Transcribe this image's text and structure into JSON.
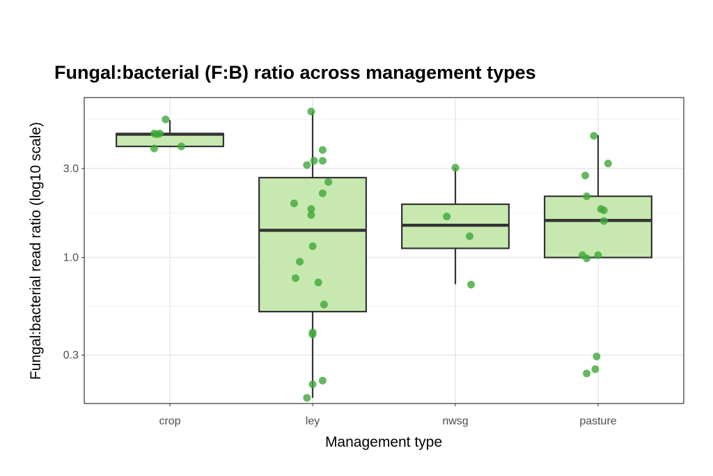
{
  "chart_data": {
    "type": "boxplot",
    "title": "Fungal:bacterial (F:B) ratio across management types",
    "xlabel": "Management type",
    "ylabel": "Fungal:bacterial read ratio (log10 scale)",
    "y_scale": "log10",
    "ylim": [
      0.165,
      7.2
    ],
    "y_ticks": [
      0.3,
      1.0,
      3.0
    ],
    "y_tick_labels": [
      "0.3",
      "1.0",
      "3.0"
    ],
    "grid": true,
    "categories": [
      "crop",
      "ley",
      "nwsg",
      "pasture"
    ],
    "colors": {
      "box_fill": "#c7e9b0",
      "box_line": "#333333",
      "point": "#3fa83a"
    },
    "boxes": [
      {
        "category": "crop",
        "lower": 3.94,
        "q1": 3.94,
        "median": 4.58,
        "q3": 4.61,
        "upper": 5.45
      },
      {
        "category": "ley",
        "lower": 0.177,
        "q1": 0.513,
        "median": 1.4,
        "q3": 2.68,
        "upper": 6.06
      },
      {
        "category": "nwsg",
        "lower": 0.72,
        "q1": 1.12,
        "median": 1.49,
        "q3": 1.93,
        "upper": 3.03
      },
      {
        "category": "pasture",
        "lower": 1.0,
        "q1": 1.0,
        "median": 1.58,
        "q3": 2.13,
        "upper": 4.53
      }
    ],
    "points": [
      {
        "category": "crop",
        "x": 0.97,
        "y": 5.5
      },
      {
        "category": "crop",
        "x": 0.89,
        "y": 4.62
      },
      {
        "category": "crop",
        "x": 0.91,
        "y": 4.58
      },
      {
        "category": "crop",
        "x": 0.93,
        "y": 4.62
      },
      {
        "category": "crop",
        "x": 0.89,
        "y": 3.84
      },
      {
        "category": "crop",
        "x": 1.08,
        "y": 3.94
      },
      {
        "category": "ley",
        "x": 1.99,
        "y": 6.06
      },
      {
        "category": "ley",
        "x": 2.07,
        "y": 3.77
      },
      {
        "category": "ley",
        "x": 2.01,
        "y": 3.3
      },
      {
        "category": "ley",
        "x": 2.07,
        "y": 3.3
      },
      {
        "category": "ley",
        "x": 1.96,
        "y": 3.13
      },
      {
        "category": "ley",
        "x": 2.11,
        "y": 2.54
      },
      {
        "category": "ley",
        "x": 2.07,
        "y": 2.21
      },
      {
        "category": "ley",
        "x": 1.87,
        "y": 1.95
      },
      {
        "category": "ley",
        "x": 1.99,
        "y": 1.82
      },
      {
        "category": "ley",
        "x": 1.99,
        "y": 1.69
      },
      {
        "category": "ley",
        "x": 2.0,
        "y": 1.15
      },
      {
        "category": "ley",
        "x": 1.91,
        "y": 0.95
      },
      {
        "category": "ley",
        "x": 1.88,
        "y": 0.775
      },
      {
        "category": "ley",
        "x": 2.04,
        "y": 0.735
      },
      {
        "category": "ley",
        "x": 2.08,
        "y": 0.56
      },
      {
        "category": "ley",
        "x": 2.0,
        "y": 0.397
      },
      {
        "category": "ley",
        "x": 2.0,
        "y": 0.387
      },
      {
        "category": "ley",
        "x": 2.07,
        "y": 0.219
      },
      {
        "category": "ley",
        "x": 2.0,
        "y": 0.209
      },
      {
        "category": "ley",
        "x": 1.96,
        "y": 0.177
      },
      {
        "category": "nwsg",
        "x": 3.0,
        "y": 3.03
      },
      {
        "category": "nwsg",
        "x": 2.94,
        "y": 1.66
      },
      {
        "category": "nwsg",
        "x": 3.1,
        "y": 1.3
      },
      {
        "category": "nwsg",
        "x": 3.11,
        "y": 0.716
      },
      {
        "category": "pasture",
        "x": 3.97,
        "y": 4.49
      },
      {
        "category": "pasture",
        "x": 4.07,
        "y": 3.19
      },
      {
        "category": "pasture",
        "x": 3.91,
        "y": 2.75
      },
      {
        "category": "pasture",
        "x": 3.92,
        "y": 2.13
      },
      {
        "category": "pasture",
        "x": 4.02,
        "y": 1.82
      },
      {
        "category": "pasture",
        "x": 4.04,
        "y": 1.79
      },
      {
        "category": "pasture",
        "x": 4.04,
        "y": 1.57
      },
      {
        "category": "pasture",
        "x": 3.89,
        "y": 1.03
      },
      {
        "category": "pasture",
        "x": 3.92,
        "y": 0.99
      },
      {
        "category": "pasture",
        "x": 4.0,
        "y": 1.03
      },
      {
        "category": "pasture",
        "x": 3.99,
        "y": 0.295
      },
      {
        "category": "pasture",
        "x": 3.98,
        "y": 0.252
      },
      {
        "category": "pasture",
        "x": 3.92,
        "y": 0.239
      }
    ]
  }
}
